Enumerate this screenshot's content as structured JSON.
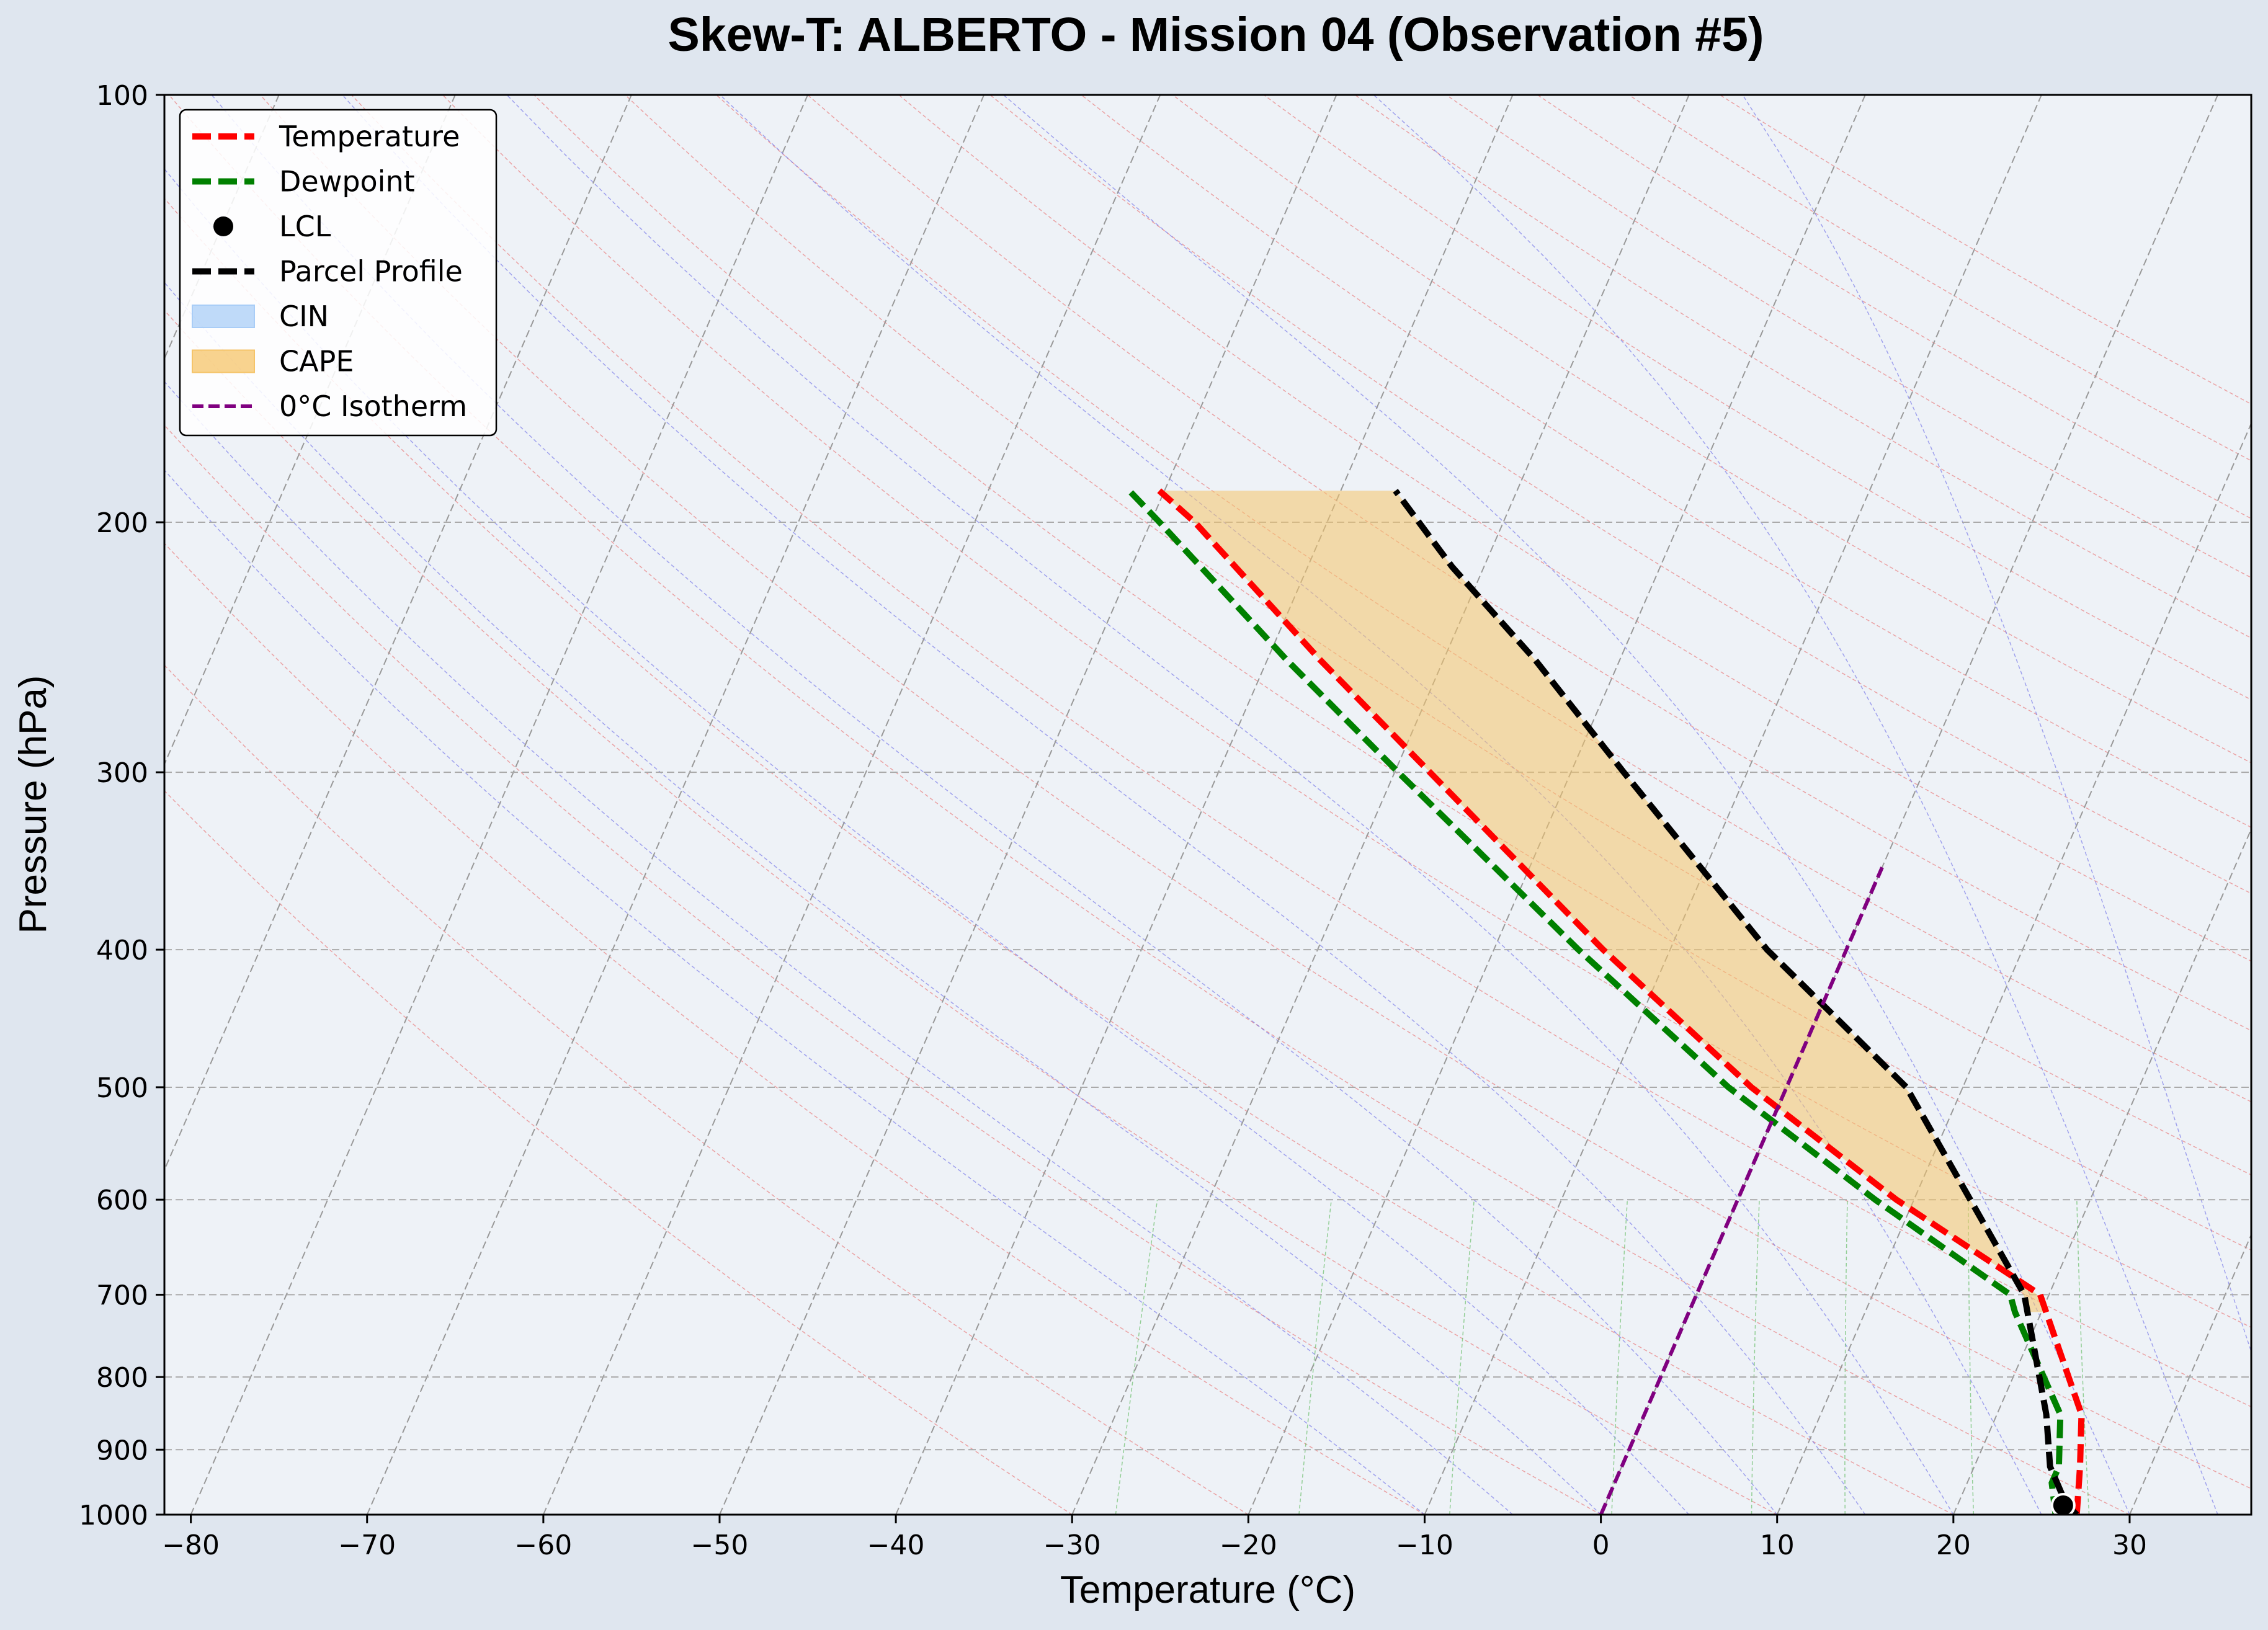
{
  "chart_data": {
    "type": "line",
    "title": "Skew-T: ALBERTO - Mission 04 (Observation #5)",
    "xlabel": "Temperature (°C)",
    "ylabel": "Pressure (hPa)",
    "xlim": [
      -81.5,
      36.9
    ],
    "ylim": [
      1000,
      100
    ],
    "y_scale": "log",
    "x_ticks": [
      -80,
      -70,
      -60,
      -50,
      -40,
      -30,
      -20,
      -10,
      0,
      10,
      20,
      30
    ],
    "x_tick_labels": [
      "−80",
      "−70",
      "−60",
      "−50",
      "−40",
      "−30",
      "−20",
      "−10",
      "0",
      "10",
      "20",
      "30"
    ],
    "y_ticks": [
      1000,
      900,
      800,
      700,
      600,
      500,
      400,
      300,
      200,
      100
    ],
    "y_tick_labels": [
      "1000",
      "900",
      "800",
      "700",
      "600",
      "500",
      "400",
      "300",
      "200",
      "100"
    ],
    "grid": true,
    "legend_position": "top-left",
    "series": [
      {
        "name": "Temperature",
        "color": "#ff0000",
        "style": "dashed",
        "points": [
          {
            "p": 1000,
            "t": 27.0
          },
          {
            "p": 925,
            "t": 26.0
          },
          {
            "p": 850,
            "t": 24.8
          },
          {
            "p": 700,
            "t": 19.5
          },
          {
            "p": 600,
            "t": 9.0
          },
          {
            "p": 500,
            "t": -2.0
          },
          {
            "p": 400,
            "t": -13.8
          },
          {
            "p": 300,
            "t": -28.0
          },
          {
            "p": 250,
            "t": -37.0
          },
          {
            "p": 200,
            "t": -47.5
          },
          {
            "p": 190,
            "t": -50.3
          }
        ]
      },
      {
        "name": "Dewpoint",
        "color": "#008000",
        "style": "dashed",
        "points": [
          {
            "p": 1000,
            "t": 25.8
          },
          {
            "p": 950,
            "t": 24.8
          },
          {
            "p": 925,
            "t": 24.8
          },
          {
            "p": 850,
            "t": 23.6
          },
          {
            "p": 720,
            "t": 18.5
          },
          {
            "p": 700,
            "t": 17.8
          },
          {
            "p": 600,
            "t": 7.8
          },
          {
            "p": 500,
            "t": -3.3
          },
          {
            "p": 400,
            "t": -15.2
          },
          {
            "p": 300,
            "t": -29.8
          },
          {
            "p": 250,
            "t": -38.9
          },
          {
            "p": 200,
            "t": -49.5
          },
          {
            "p": 190,
            "t": -52.0
          }
        ]
      },
      {
        "name": "Parcel Profile",
        "color": "#000000",
        "style": "dashed",
        "points": [
          {
            "p": 1000,
            "t": 27.0
          },
          {
            "p": 985,
            "t": 26.2
          },
          {
            "p": 925,
            "t": 24.3
          },
          {
            "p": 850,
            "t": 22.8
          },
          {
            "p": 700,
            "t": 18.6
          },
          {
            "p": 500,
            "t": 6.8
          },
          {
            "p": 400,
            "t": -4.5
          },
          {
            "p": 300,
            "t": -17.0
          },
          {
            "p": 250,
            "t": -24.8
          },
          {
            "p": 215,
            "t": -31.8
          },
          {
            "p": 190,
            "t": -36.9
          }
        ]
      },
      {
        "name": "0°C Isotherm",
        "color": "#800080",
        "style": "dashed",
        "points": [
          {
            "p": 1000,
            "t": 0
          },
          {
            "p": 350,
            "t": 0
          }
        ]
      }
    ],
    "lcl": {
      "name": "LCL",
      "p": 985,
      "t": 26.0
    },
    "cape": {
      "name": "CAPE",
      "color": "#f5c46a",
      "p_bottom": 720,
      "p_top": 190
    },
    "cin": {
      "name": "CIN",
      "color": "#a9cdf7"
    },
    "legend": [
      "Temperature",
      "Dewpoint",
      "LCL",
      "Parcel Profile",
      "CIN",
      "CAPE",
      "0°C Isotherm"
    ]
  }
}
